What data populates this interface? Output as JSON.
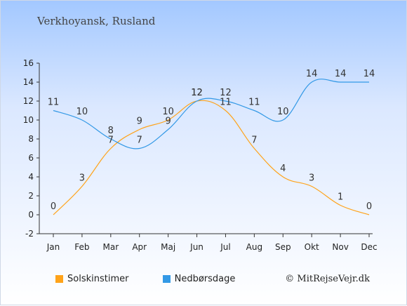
{
  "chart_data": {
    "type": "line",
    "title": "Verkhoyansk, Rusland",
    "categories": [
      "Jan",
      "Feb",
      "Mar",
      "Apr",
      "Maj",
      "Jun",
      "Jul",
      "Aug",
      "Sep",
      "Okt",
      "Nov",
      "Dec"
    ],
    "series": [
      {
        "name": "Solskinstimer",
        "color": "#ffa31a",
        "values": [
          0,
          3,
          7,
          9,
          10,
          12,
          11,
          7,
          4,
          3,
          1,
          0
        ]
      },
      {
        "name": "Nedbørsdage",
        "color": "#3399e6",
        "values": [
          11,
          10,
          8,
          7,
          9,
          12,
          12,
          11,
          10,
          14,
          14,
          14
        ]
      }
    ],
    "ylim": [
      -2,
      16
    ],
    "yticks": [
      -2,
      0,
      2,
      4,
      6,
      8,
      10,
      12,
      14,
      16
    ],
    "xlabel": "",
    "ylabel": "",
    "grid": false,
    "legend_position": "bottom-left"
  },
  "copyright": "© MitRejseVejr.dk"
}
